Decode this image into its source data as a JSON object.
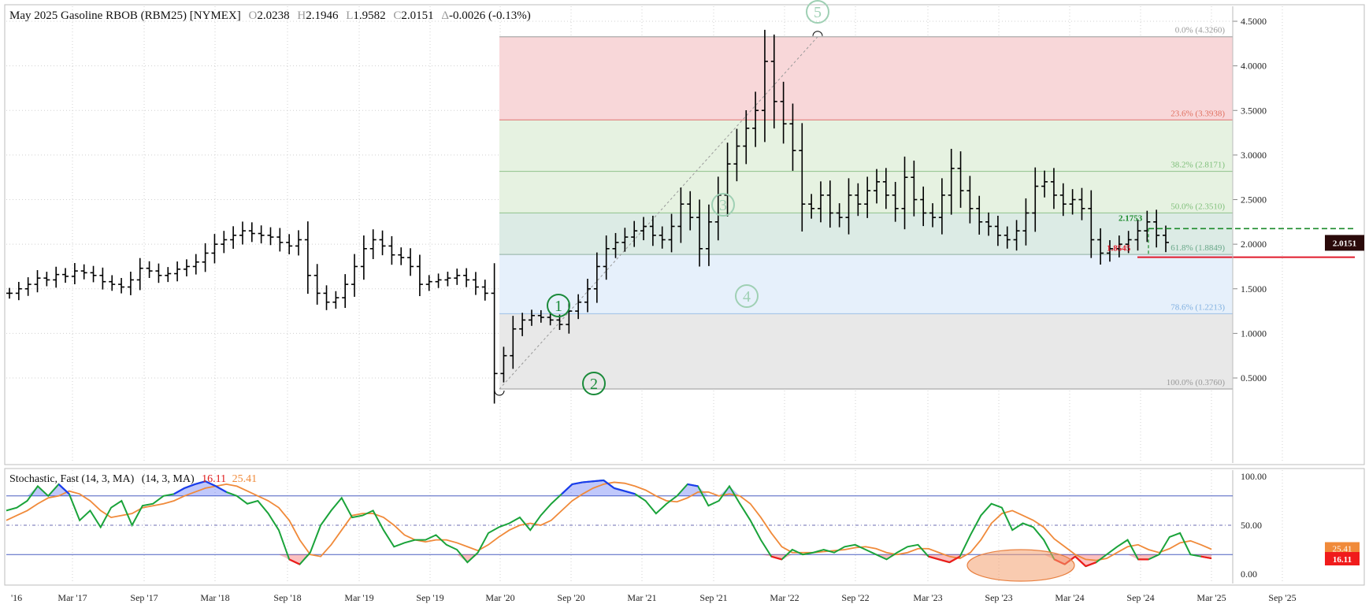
{
  "header": {
    "symbol": "May 2025 Gasoline RBOB (RBM25) [NYMEX]",
    "open_label": "O",
    "open": "2.0238",
    "high_label": "H",
    "high": "2.1946",
    "low_label": "L",
    "low": "1.9582",
    "close_label": "C",
    "close": "2.0151",
    "change_label": "Δ",
    "change": "-0.0026 (-0.13%)"
  },
  "colors": {
    "fib_red": "#f8d7d9",
    "fib_green": "#e6f2e1",
    "fib_teal": "#dcebe5",
    "fib_blue": "#e6f0fb",
    "fib_gray": "#e8e8e8",
    "bar": "#000000",
    "stoch_fast": "#1aa33a",
    "stoch_slow": "#f08a3a",
    "overbought": "#1b3bf0",
    "oversold": "#f01b1b",
    "price_tag": "#2a0a0a"
  },
  "chart_data": [
    {
      "type": "ohlc",
      "title": "May 2025 Gasoline RBOB (RBM25) [NYMEX]",
      "ylim": [
        0.3,
        4.6
      ],
      "y_ticks": [
        "4.5000",
        "4.0000",
        "3.5000",
        "3.0000",
        "2.5000",
        "2.0000",
        "1.5000",
        "1.0000",
        "0.5000"
      ],
      "x_ticks": [
        "'16",
        "Mar '17",
        "Sep '17",
        "Mar '18",
        "Sep '18",
        "Mar '19",
        "Sep '19",
        "Mar '20",
        "Sep '20",
        "Mar '21",
        "Sep '21",
        "Mar '22",
        "Sep '22",
        "Mar '23",
        "Sep '23",
        "Mar '24",
        "Sep '24",
        "Mar '25",
        "Sep '25"
      ],
      "last_price": "2.0151",
      "fib_levels": [
        {
          "label": "0.0% (4.3260)",
          "value": 4.326
        },
        {
          "label": "23.6% (3.3938)",
          "value": 3.3938
        },
        {
          "label": "38.2% (2.8171)",
          "value": 2.8171
        },
        {
          "label": "50.0% (2.3510)",
          "value": 2.351
        },
        {
          "label": "61.8% (1.8849)",
          "value": 1.8849
        },
        {
          "label": "78.6% (1.2213)",
          "value": 1.2213
        },
        {
          "label": "100.0% (0.3760)",
          "value": 0.376
        }
      ],
      "annotations": {
        "resistance": "2.1753",
        "support": "1.8545",
        "waves": [
          "1",
          "2",
          "3",
          "4",
          "5"
        ]
      },
      "closes": [
        1.45,
        1.5,
        1.55,
        1.62,
        1.6,
        1.66,
        1.64,
        1.7,
        1.68,
        1.65,
        1.58,
        1.55,
        1.52,
        1.6,
        1.73,
        1.7,
        1.65,
        1.67,
        1.72,
        1.75,
        1.8,
        1.9,
        2.0,
        2.05,
        2.1,
        2.15,
        2.12,
        2.1,
        2.08,
        2.02,
        1.98,
        2.05,
        1.65,
        1.45,
        1.35,
        1.4,
        1.55,
        1.75,
        1.95,
        2.05,
        1.98,
        1.88,
        1.85,
        1.75,
        1.55,
        1.58,
        1.6,
        1.62,
        1.65,
        1.6,
        1.52,
        1.45,
        0.55,
        0.75,
        1.05,
        1.15,
        1.2,
        1.18,
        1.15,
        1.1,
        1.25,
        1.35,
        1.5,
        1.75,
        1.95,
        2.02,
        2.08,
        2.15,
        2.2,
        2.1,
        2.05,
        2.2,
        2.45,
        2.3,
        1.95,
        2.25,
        2.55,
        2.9,
        3.1,
        3.3,
        3.5,
        4.05,
        3.6,
        3.35,
        3.05,
        2.45,
        2.4,
        2.55,
        2.35,
        2.3,
        2.55,
        2.45,
        2.6,
        2.7,
        2.55,
        2.4,
        2.75,
        2.5,
        2.35,
        2.3,
        2.55,
        2.85,
        2.6,
        2.4,
        2.25,
        2.2,
        2.1,
        2.05,
        2.15,
        2.35,
        2.65,
        2.7,
        2.55,
        2.45,
        2.5,
        2.4,
        2.05,
        1.9,
        1.95,
        2.0,
        2.05,
        2.15,
        2.25,
        2.1,
        2.02
      ]
    },
    {
      "type": "line",
      "title": "Stochastic, Fast (14, 3, MA)",
      "params": "(14, 3, MA)",
      "fast_value": "16.11",
      "slow_value": "25.41",
      "ylim": [
        0,
        100
      ],
      "y_ticks": [
        "100.00",
        "50.00",
        "0.00"
      ],
      "levels": [
        80,
        50,
        20
      ],
      "series": [
        {
          "values": [
            65,
            68,
            75,
            90,
            80,
            92,
            82,
            55,
            65,
            48,
            68,
            75,
            50,
            70,
            72,
            80,
            82,
            88,
            92,
            95,
            90,
            84,
            80,
            72,
            75,
            62,
            45,
            15,
            10,
            22,
            50,
            65,
            78,
            58,
            60,
            65,
            45,
            28,
            32,
            35,
            35,
            40,
            30,
            25,
            12,
            22,
            42,
            48,
            52,
            58,
            45,
            60,
            72,
            82,
            92,
            94,
            95,
            96,
            88,
            85,
            82,
            75,
            62,
            72,
            80,
            92,
            90,
            70,
            75,
            90,
            72,
            55,
            35,
            18,
            15,
            25,
            20,
            22,
            25,
            22,
            28,
            30,
            25,
            20,
            15,
            22,
            28,
            30,
            18,
            15,
            12,
            18,
            40,
            60,
            72,
            68,
            45,
            52,
            48,
            35,
            15,
            10,
            18,
            8,
            12,
            20,
            28,
            35,
            15,
            15,
            20,
            38,
            42,
            20,
            18,
            16.11
          ]
        },
        {
          "values": [
            55,
            60,
            65,
            72,
            78,
            80,
            85,
            82,
            75,
            65,
            58,
            60,
            62,
            68,
            70,
            72,
            75,
            80,
            84,
            88,
            90,
            92,
            90,
            85,
            80,
            75,
            68,
            55,
            35,
            20,
            18,
            30,
            45,
            60,
            62,
            62,
            58,
            50,
            40,
            35,
            33,
            35,
            35,
            32,
            28,
            24,
            30,
            38,
            45,
            50,
            52,
            50,
            55,
            65,
            75,
            82,
            88,
            92,
            94,
            93,
            90,
            86,
            80,
            75,
            74,
            78,
            84,
            84,
            80,
            82,
            80,
            72,
            58,
            42,
            28,
            22,
            22,
            22,
            23,
            24,
            25,
            27,
            28,
            26,
            22,
            20,
            22,
            26,
            26,
            22,
            18,
            16,
            22,
            35,
            52,
            62,
            65,
            60,
            55,
            48,
            36,
            28,
            20,
            15,
            14,
            16,
            22,
            28,
            30,
            25,
            22,
            26,
            32,
            34,
            30,
            25.41
          ]
        }
      ]
    }
  ]
}
